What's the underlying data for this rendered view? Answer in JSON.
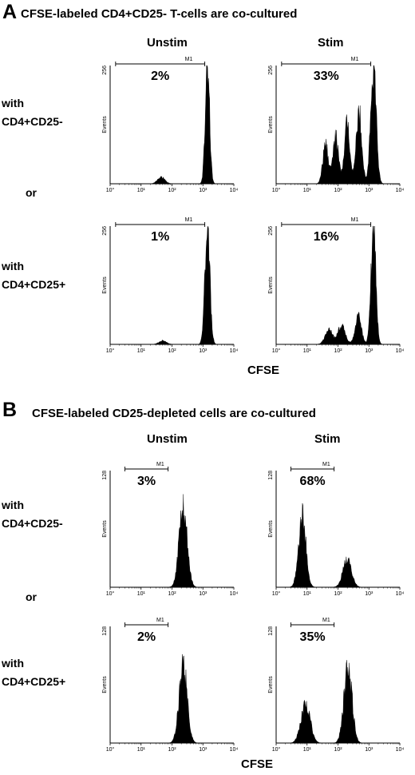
{
  "panel_a": {
    "letter": "A",
    "title": "CFSE-labeled CD4+CD25- T-cells are co-cultured",
    "col_labels": [
      "Unstim",
      "Stim"
    ],
    "row_labels": {
      "with": "with",
      "first": "CD4+CD25-",
      "or": "or",
      "second": "CD4+CD25+"
    },
    "x_axis_title": "CFSE"
  },
  "panel_b": {
    "letter": "B",
    "title": "CFSE-labeled CD25-depleted cells are co-cultured",
    "col_labels": [
      "Unstim",
      "Stim"
    ],
    "row_labels": {
      "with": "with",
      "first": "CD4+CD25-",
      "or": "or",
      "second": "CD4+CD25+"
    },
    "x_axis_title": "CFSE"
  },
  "chart_data": [
    {
      "type": "area",
      "panel": "A",
      "condition": "Unstim, with CD4+CD25-",
      "x_scale": "log",
      "xlim": [
        1,
        10000
      ],
      "ylim": [
        0,
        256
      ],
      "y_max_label": "256",
      "ylabel": "Events",
      "x_ticks": [
        "10°",
        "10¹",
        "10²",
        "10³",
        "10⁴"
      ],
      "gate": {
        "label": "M1",
        "from": 1.5,
        "to": 1150
      },
      "percent": "2%",
      "peaks": [
        {
          "x": 45,
          "height": 14,
          "width": 0.12
        },
        {
          "x": 1400,
          "height": 256,
          "width": 0.07
        }
      ]
    },
    {
      "type": "area",
      "panel": "A",
      "condition": "Stim, with CD4+CD25-",
      "x_scale": "log",
      "xlim": [
        1,
        10000
      ],
      "ylim": [
        0,
        256
      ],
      "y_max_label": "256",
      "ylabel": "Events",
      "x_ticks": [
        "10°",
        "10¹",
        "10²",
        "10³",
        "10⁴"
      ],
      "gate": {
        "label": "M1",
        "from": 1.5,
        "to": 1150
      },
      "percent": "33%",
      "peaks": [
        {
          "x": 40,
          "height": 85,
          "width": 0.09
        },
        {
          "x": 85,
          "height": 100,
          "width": 0.09
        },
        {
          "x": 200,
          "height": 130,
          "width": 0.09
        },
        {
          "x": 480,
          "height": 155,
          "width": 0.09
        },
        {
          "x": 1400,
          "height": 256,
          "width": 0.09
        }
      ]
    },
    {
      "type": "area",
      "panel": "A",
      "condition": "Unstim, with CD4+CD25+",
      "x_scale": "log",
      "xlim": [
        1,
        10000
      ],
      "ylim": [
        0,
        256
      ],
      "y_max_label": "256",
      "ylabel": "Events",
      "x_ticks": [
        "10°",
        "10¹",
        "10²",
        "10³",
        "10⁴"
      ],
      "gate": {
        "label": "M1",
        "from": 1.5,
        "to": 1150
      },
      "percent": "1%",
      "peaks": [
        {
          "x": 50,
          "height": 8,
          "width": 0.12
        },
        {
          "x": 1400,
          "height": 256,
          "width": 0.08
        }
      ]
    },
    {
      "type": "area",
      "panel": "A",
      "condition": "Stim, with CD4+CD25+",
      "x_scale": "log",
      "xlim": [
        1,
        10000
      ],
      "ylim": [
        0,
        256
      ],
      "y_max_label": "256",
      "ylabel": "Events",
      "x_ticks": [
        "10°",
        "10¹",
        "10²",
        "10³",
        "10⁴"
      ],
      "gate": {
        "label": "M1",
        "from": 1.5,
        "to": 1150
      },
      "percent": "16%",
      "peaks": [
        {
          "x": 50,
          "height": 32,
          "width": 0.12
        },
        {
          "x": 130,
          "height": 40,
          "width": 0.12
        },
        {
          "x": 450,
          "height": 62,
          "width": 0.1
        },
        {
          "x": 1400,
          "height": 256,
          "width": 0.08
        }
      ]
    },
    {
      "type": "area",
      "panel": "B",
      "condition": "Unstim, with CD4+CD25-",
      "x_scale": "log",
      "xlim": [
        1,
        10000
      ],
      "ylim": [
        0,
        128
      ],
      "y_max_label": "128",
      "ylabel": "Events",
      "x_ticks": [
        "10°",
        "10¹",
        "10²",
        "10³",
        "10⁴"
      ],
      "gate": {
        "label": "M1",
        "from": 3,
        "to": 75
      },
      "percent": "3%",
      "peaks": [
        {
          "x": 230,
          "height": 88,
          "width": 0.13
        }
      ]
    },
    {
      "type": "area",
      "panel": "B",
      "condition": "Stim, with CD4+CD25-",
      "x_scale": "log",
      "xlim": [
        1,
        10000
      ],
      "ylim": [
        0,
        128
      ],
      "y_max_label": "128",
      "ylabel": "Events",
      "x_ticks": [
        "10°",
        "10¹",
        "10²",
        "10³",
        "10⁴"
      ],
      "gate": {
        "label": "M1",
        "from": 3,
        "to": 75
      },
      "percent": "68%",
      "peaks": [
        {
          "x": 7,
          "height": 78,
          "width": 0.12
        },
        {
          "x": 200,
          "height": 30,
          "width": 0.14
        }
      ]
    },
    {
      "type": "area",
      "panel": "B",
      "condition": "Unstim, with CD4+CD25+",
      "x_scale": "log",
      "xlim": [
        1,
        10000
      ],
      "ylim": [
        0,
        128
      ],
      "y_max_label": "128",
      "ylabel": "Events",
      "x_ticks": [
        "10°",
        "10¹",
        "10²",
        "10³",
        "10⁴"
      ],
      "gate": {
        "label": "M1",
        "from": 3,
        "to": 75
      },
      "percent": "2%",
      "peaks": [
        {
          "x": 230,
          "height": 85,
          "width": 0.13
        }
      ]
    },
    {
      "type": "area",
      "panel": "B",
      "condition": "Stim, with CD4+CD25+",
      "x_scale": "log",
      "xlim": [
        1,
        10000
      ],
      "ylim": [
        0,
        128
      ],
      "y_max_label": "128",
      "ylabel": "Events",
      "x_ticks": [
        "10°",
        "10¹",
        "10²",
        "10³",
        "10⁴"
      ],
      "gate": {
        "label": "M1",
        "from": 3,
        "to": 75
      },
      "percent": "35%",
      "peaks": [
        {
          "x": 9,
          "height": 42,
          "width": 0.15
        },
        {
          "x": 210,
          "height": 85,
          "width": 0.13
        }
      ]
    }
  ]
}
